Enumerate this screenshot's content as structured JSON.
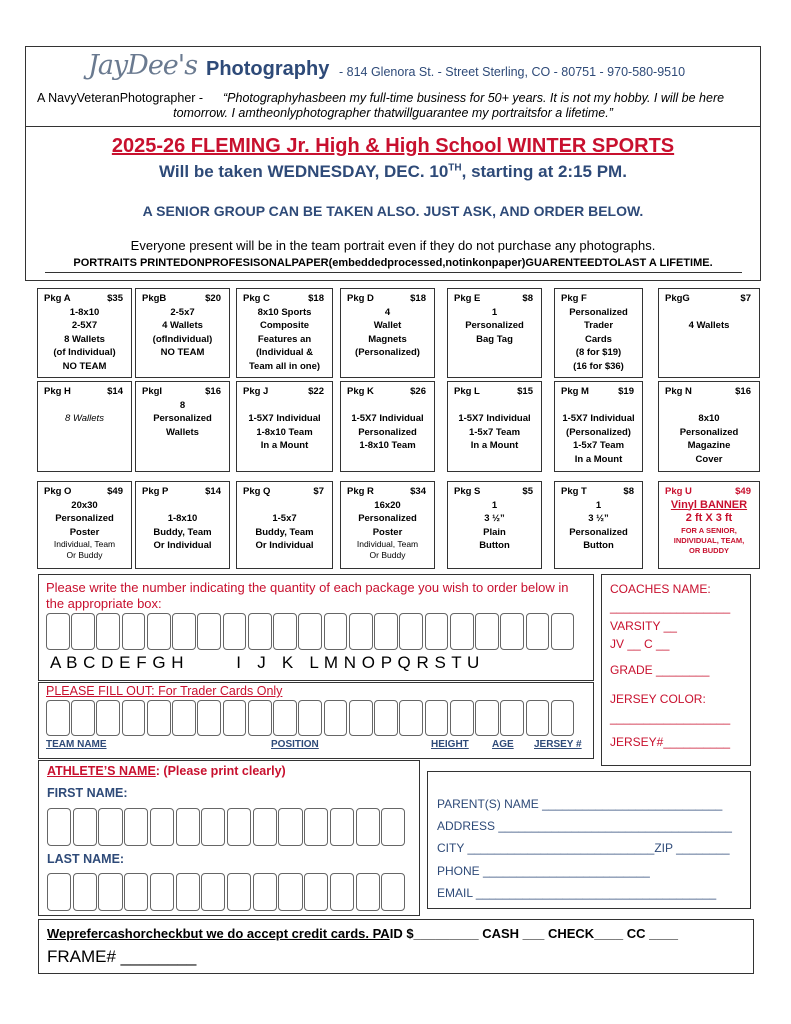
{
  "header": {
    "logo_script": "JayDee's",
    "brand": "Photography",
    "address": "- 814 Glenora St. - Street Sterling, CO - 80751 - 970-580-9510",
    "tagline_lead": "A NavyVeteranPhotographer -",
    "quote_line1": "“Photographyhasbeen my full-time business for 50+ years. It is not my hobby. I will be here",
    "quote_line2": "tomorrow. I amtheonlyphotographer thatwillguarantee my portraitsfor a lifetime.”"
  },
  "event": {
    "title": "2025-26 FLEMING Jr. High & High School WINTER SPORTS",
    "schedule_pre": "Will be taken WEDNESDAY, DEC. 10",
    "schedule_sup": "TH",
    "schedule_post": ", starting at 2:15 PM.",
    "senior_note": "A SENIOR GROUP CAN BE TAKEN ALSO. JUST ASK, AND ORDER BELOW.",
    "team_note": "Everyone present will be in the team portrait even if they do not purchase any photographs.",
    "guarantee": "PORTRAITS PRINTEDONPROFESISONALPAPER(embeddedprocessed,notinkonpaper)GUARENTEEDTOLAST A LIFETIME."
  },
  "packages": [
    {
      "name": "Pkg A",
      "price": "$35",
      "lines": [
        "1-8x10",
        "2-5X7",
        "8 Wallets",
        "(of Individual)",
        "NO TEAM"
      ]
    },
    {
      "name": "PkgB",
      "price": "$20",
      "lines": [
        "2-5x7",
        "4 Wallets",
        "(ofIndividual)",
        "NO TEAM"
      ]
    },
    {
      "name": "Pkg C",
      "price": "$18",
      "lines": [
        "8x10 Sports",
        "Composite",
        "Features an",
        "(Individual &",
        "Team all in one)"
      ]
    },
    {
      "name": "Pkg D",
      "price": "$18",
      "lines": [
        "4",
        "Wallet",
        "Magnets",
        "(Personalized)"
      ]
    },
    {
      "name": "Pkg E",
      "price": "$8",
      "lines": [
        "1",
        "Personalized",
        "Bag Tag"
      ]
    },
    {
      "name": "Pkg F",
      "price": "",
      "lines": [
        "Personalized",
        "Trader",
        "Cards",
        "(8 for $19)",
        "(16 for $36)"
      ]
    },
    {
      "name": "PkgG",
      "price": "$7",
      "lines": [
        "",
        "4 Wallets"
      ]
    },
    {
      "name": "Pkg H",
      "price": "$14",
      "lines": [
        "",
        "8 Wallets"
      ]
    },
    {
      "name": "PkgI",
      "price": "$16",
      "lines": [
        "8",
        "Personalized",
        "Wallets"
      ]
    },
    {
      "name": "Pkg J",
      "price": "$22",
      "lines": [
        "",
        "1-5X7 Individual",
        "1-8x10 Team",
        "In a Mount"
      ]
    },
    {
      "name": "Pkg K",
      "price": "$26",
      "lines": [
        "",
        "1-5X7 Individual",
        "Personalized",
        "1-8x10 Team"
      ]
    },
    {
      "name": "Pkg L",
      "price": "$15",
      "lines": [
        "",
        "1-5X7 Individual",
        "1-5x7 Team",
        "In a Mount"
      ]
    },
    {
      "name": "Pkg M",
      "price": "$19",
      "lines": [
        "",
        "1-5X7 Individual",
        "(Personalized)",
        "1-5x7 Team",
        "In a Mount"
      ]
    },
    {
      "name": "Pkg N",
      "price": "$16",
      "lines": [
        "",
        "8x10",
        "Personalized",
        "Magazine",
        "Cover"
      ]
    },
    {
      "name": "Pkg O",
      "price": "$49",
      "lines": [
        "20x30",
        "Personalized",
        "Poster"
      ],
      "small": [
        "Individual, Team",
        "Or Buddy"
      ]
    },
    {
      "name": "Pkg P",
      "price": "$14",
      "lines": [
        "",
        "1-8x10",
        "Buddy, Team",
        "Or Individual"
      ]
    },
    {
      "name": "Pkg Q",
      "price": "$7",
      "lines": [
        "",
        "1-5x7",
        "Buddy, Team",
        "Or Individual"
      ]
    },
    {
      "name": "Pkg R",
      "price": "$34",
      "lines": [
        "16x20",
        "Personalized",
        "Poster"
      ],
      "small": [
        "Individual, Team",
        "Or Buddy"
      ]
    },
    {
      "name": "Pkg S",
      "price": "$5",
      "lines": [
        "1",
        "3 ½”",
        "Plain",
        "Button"
      ]
    },
    {
      "name": "Pkg T",
      "price": "$8",
      "lines": [
        "1",
        "3 ½”",
        "Personalized",
        "Button"
      ]
    },
    {
      "name": "Pkg U",
      "price": "$49",
      "lines": [
        "Vinyl BANNER",
        "2 ft X 3 ft"
      ],
      "small": [
        "FOR A SENIOR,",
        "INDIVIDUAL, TEAM,",
        "OR BUDDY"
      ]
    }
  ],
  "order": {
    "instructions": "Please write the number indicating the quantity of each package you wish to order below in the appropriate box:",
    "letters": "A B C D E F G H          I   J   K   L M N O P Q R S T U",
    "trader_heading": "PLEASE FILL OUT: For Trader Cards Only",
    "trader_labels": [
      "TEAM NAME",
      "POSITION",
      "HEIGHT",
      "AGE",
      "JERSEY #"
    ]
  },
  "coach": {
    "coaches_name": "COACHES NAME:",
    "blank_line": "__________________",
    "varsity": "VARSITY __",
    "jv_c": "JV __ C __",
    "grade": "GRADE ________",
    "jersey_color": "JERSEY COLOR:",
    "jersey_num": "JERSEY#__________"
  },
  "athlete": {
    "heading_main": "ATHLETE’S NAME",
    "heading_rest": ": (Please print clearly)",
    "first_name": "FIRST NAME:",
    "last_name": "LAST NAME:"
  },
  "parent": {
    "parent_name": "PARENT(S) NAME ___________________________",
    "address": "ADDRESS ___________________________________",
    "city": "CITY ____________________________ZIP ________",
    "phone": "PHONE _________________________",
    "email": "EMAIL ____________________________________"
  },
  "payment": {
    "preference": "Weprefercashorcheckbut we do accept credit cards. PA",
    "paid": "ID $_________ CASH ___ CHECK____ CC ____",
    "frame": "FRAME# ________"
  },
  "colors": {
    "red": "#c8102e",
    "blue": "#2e4a78",
    "border": "#333333"
  }
}
